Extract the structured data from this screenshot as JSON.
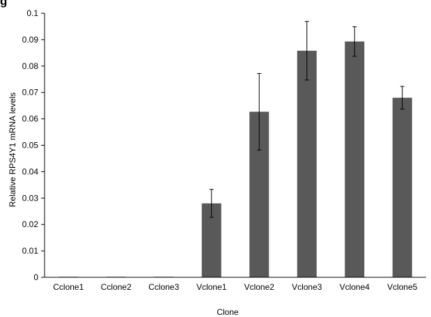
{
  "figure_label": "g",
  "chart_data": {
    "type": "bar",
    "title": "",
    "xlabel": "Clone",
    "ylabel": "Relative RPS4Y1 mRNA levels",
    "ylim": [
      0,
      0.1
    ],
    "yticks": [
      0,
      0.01,
      0.02,
      0.03,
      0.04,
      0.05,
      0.06,
      0.07,
      0.08,
      0.09,
      0.1
    ],
    "ytick_labels": [
      "0",
      "0.01",
      "0.02",
      "0.03",
      "0.04",
      "0.05",
      "0.06",
      "0.07",
      "0.08",
      "0.09",
      "0.1"
    ],
    "categories": [
      "Cclone1",
      "Cclone2",
      "Cclone3",
      "Vclone1",
      "Vclone2",
      "Vclone3",
      "Vclone4",
      "Vclone5"
    ],
    "values": [
      0.0002,
      0.0002,
      0.0002,
      0.028,
      0.0627,
      0.0858,
      0.0893,
      0.068
    ],
    "errors": [
      0,
      0,
      0,
      0.0053,
      0.0145,
      0.0111,
      0.0056,
      0.0043
    ],
    "grid": false,
    "legend": "none",
    "bar_color": "#595959"
  }
}
